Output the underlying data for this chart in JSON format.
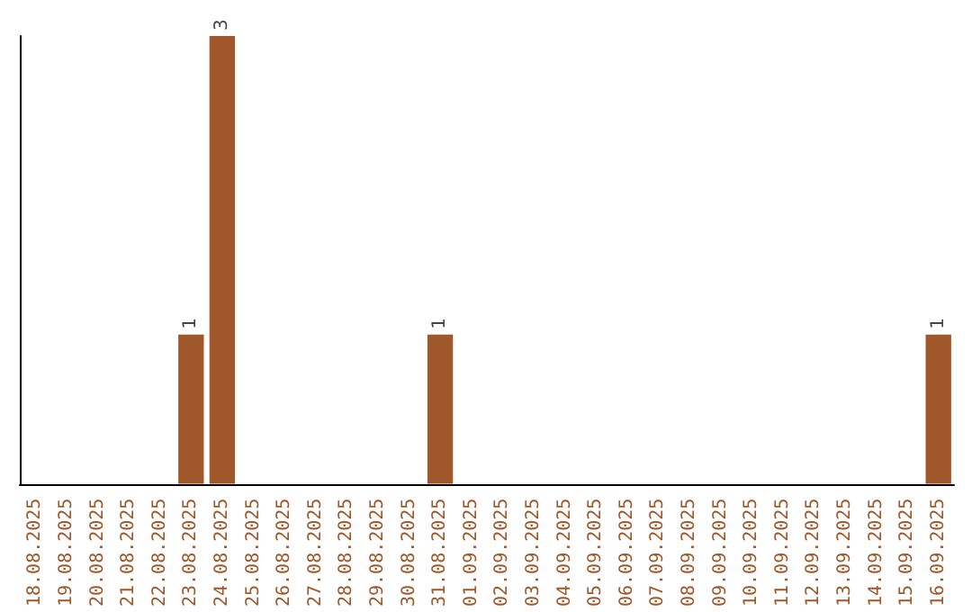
{
  "chart_data": {
    "type": "bar",
    "categories": [
      "18.08.2025",
      "19.08.2025",
      "20.08.2025",
      "21.08.2025",
      "22.08.2025",
      "23.08.2025",
      "24.08.2025",
      "25.08.2025",
      "26.08.2025",
      "27.08.2025",
      "28.08.2025",
      "29.08.2025",
      "30.08.2025",
      "31.08.2025",
      "01.09.2025",
      "02.09.2025",
      "03.09.2025",
      "04.09.2025",
      "05.09.2025",
      "06.09.2025",
      "07.09.2025",
      "08.09.2025",
      "09.09.2025",
      "10.09.2025",
      "11.09.2025",
      "12.09.2025",
      "13.09.2025",
      "14.09.2025",
      "15.09.2025",
      "16.09.2025"
    ],
    "values": [
      0,
      0,
      0,
      0,
      0,
      1,
      3,
      0,
      0,
      0,
      0,
      0,
      0,
      1,
      0,
      0,
      0,
      0,
      0,
      0,
      0,
      0,
      0,
      0,
      0,
      0,
      0,
      0,
      0,
      1
    ],
    "value_labels": [
      null,
      null,
      null,
      null,
      null,
      "1",
      "3",
      null,
      null,
      null,
      null,
      null,
      null,
      "1",
      null,
      null,
      null,
      null,
      null,
      null,
      null,
      null,
      null,
      null,
      null,
      null,
      null,
      null,
      null,
      "1"
    ],
    "color": "#a0582a",
    "tick_labels": "x"
  }
}
